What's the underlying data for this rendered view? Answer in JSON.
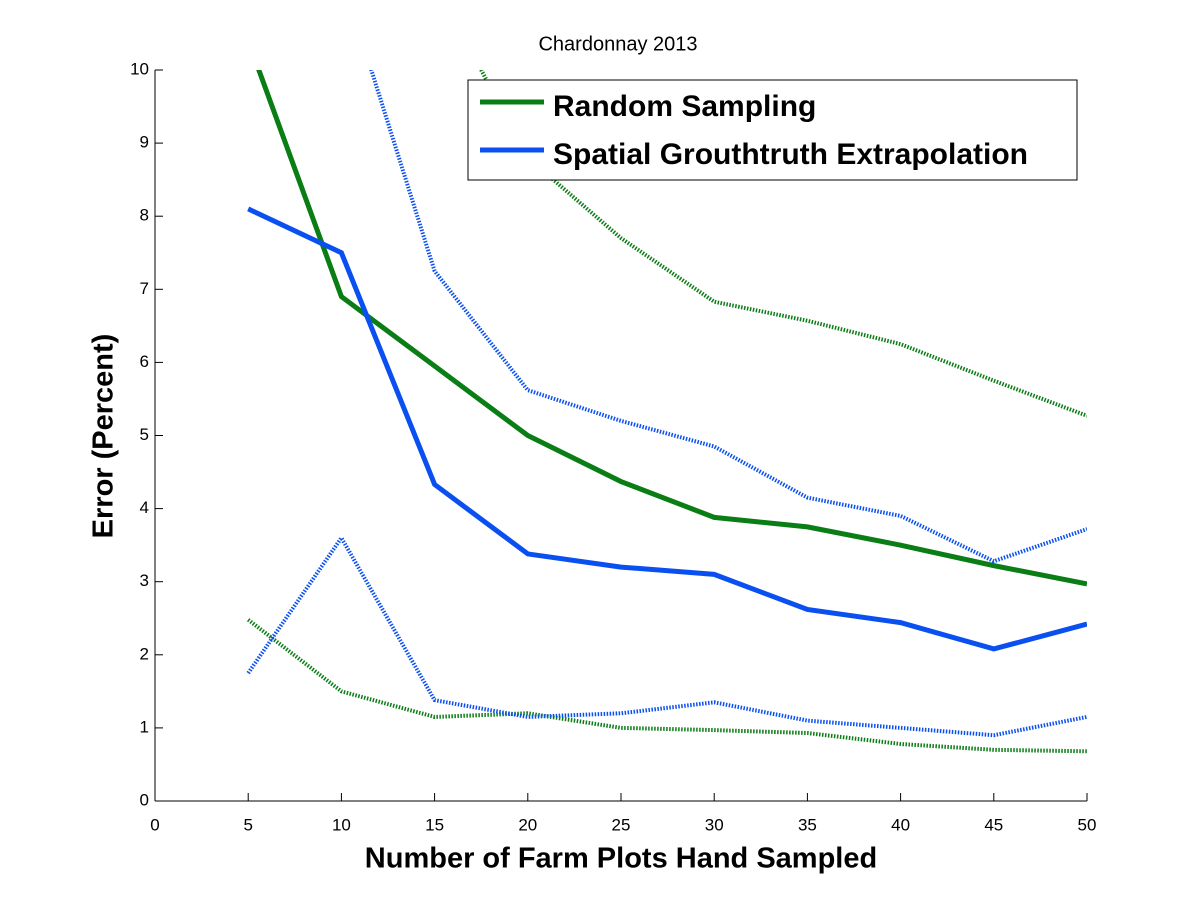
{
  "chart_data": {
    "type": "line",
    "title": "Chardonnay 2013",
    "x_label": "Number of Farm Plots Hand Sampled",
    "y_label": "Error (Percent)",
    "x": [
      5,
      10,
      15,
      20,
      25,
      30,
      35,
      40,
      45,
      50
    ],
    "series": [
      {
        "name": "Random Sampling",
        "color": "#0a7d14",
        "linestyle": "solid",
        "values": [
          10.4,
          6.9,
          5.95,
          5.0,
          4.37,
          3.88,
          3.75,
          3.5,
          3.22,
          2.97
        ]
      },
      {
        "name": "Spatial Grouthtruth Extrapolation",
        "color": "#0a50f0",
        "linestyle": "solid",
        "values": [
          8.1,
          7.5,
          4.33,
          3.38,
          3.2,
          3.1,
          2.62,
          2.44,
          2.08,
          2.42
        ]
      },
      {
        "color": "#0a7d14",
        "linestyle": "dotted",
        "values": [
          null,
          null,
          11.2,
          8.8,
          7.7,
          6.83,
          6.57,
          6.25,
          5.75,
          5.27
        ]
      },
      {
        "color": "#0a7d14",
        "linestyle": "dotted",
        "values": [
          2.48,
          1.5,
          1.15,
          1.2,
          1.0,
          0.97,
          0.93,
          0.78,
          0.7,
          0.68
        ]
      },
      {
        "color": "#0a50f0",
        "linestyle": "dotted",
        "values": [
          null,
          11.3,
          7.25,
          5.62,
          5.2,
          4.85,
          4.15,
          3.9,
          3.28,
          3.72
        ]
      },
      {
        "color": "#0a50f0",
        "linestyle": "dotted",
        "values": [
          1.75,
          3.6,
          1.38,
          1.15,
          1.2,
          1.35,
          1.1,
          1.0,
          0.9,
          1.15
        ]
      }
    ],
    "xlim": [
      0,
      50
    ],
    "xticks": [
      0,
      5,
      10,
      15,
      20,
      25,
      30,
      35,
      40,
      45,
      50
    ],
    "ylim": [
      0,
      10
    ],
    "yticks": [
      0,
      1,
      2,
      3,
      4,
      5,
      6,
      7,
      8,
      9,
      10
    ],
    "grid": false,
    "legend": "top-right"
  }
}
